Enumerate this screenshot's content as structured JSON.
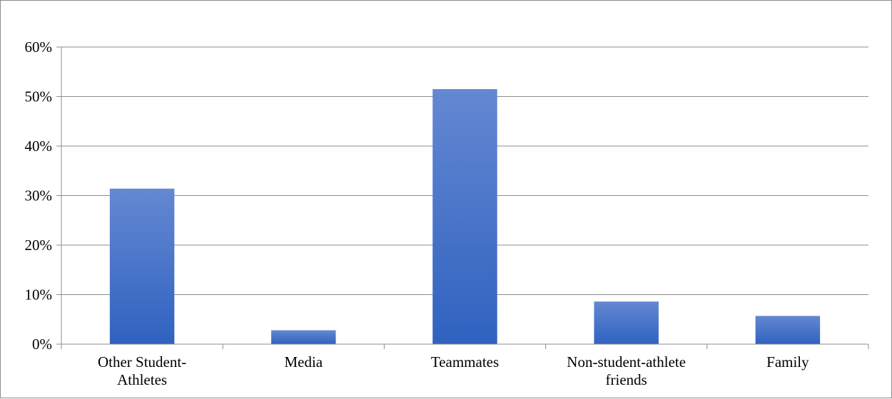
{
  "chart_data": {
    "type": "bar",
    "title": "",
    "xlabel": "",
    "ylabel": "",
    "categories": [
      "Other Student-\nAthletes",
      "Media",
      "Teammates",
      "Non-student-athlete\nfriends",
      "Family"
    ],
    "values": [
      0.314,
      0.028,
      0.515,
      0.086,
      0.057
    ],
    "ylim": [
      0,
      0.6
    ],
    "yticks": [
      "0%",
      "10%",
      "20%",
      "30%",
      "40%",
      "50%",
      "60%"
    ],
    "grid": true,
    "legend": "none",
    "bar_color_top": "#6488d2",
    "bar_color_bottom": "#2f62c0",
    "gridline_color": "#8c8c8c"
  }
}
